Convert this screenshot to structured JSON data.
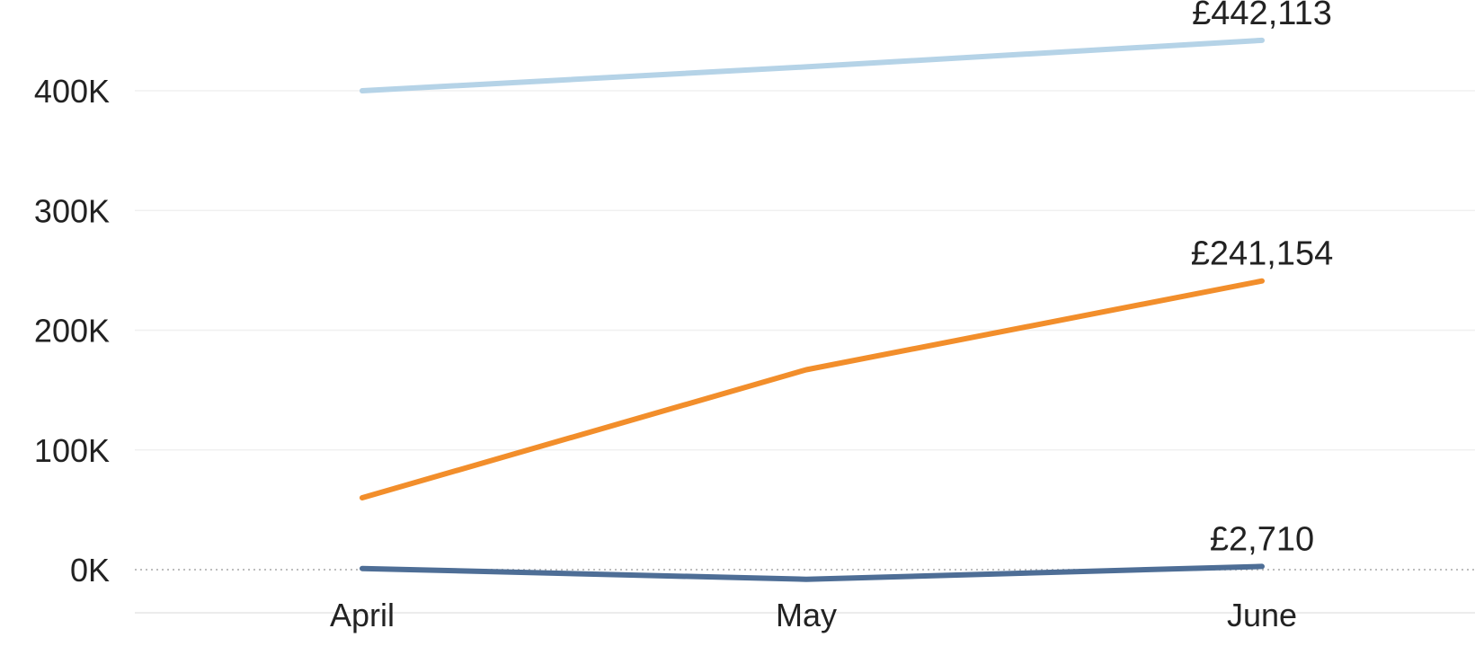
{
  "chart_data": {
    "type": "line",
    "categories": [
      "April",
      "May",
      "June"
    ],
    "series": [
      {
        "values": [
          400000,
          420000,
          442113
        ],
        "color": "#b5d3e7",
        "end_label": "£442,113"
      },
      {
        "values": [
          60000,
          167000,
          241154
        ],
        "color": "#f28e2b",
        "end_label": "£241,154"
      },
      {
        "values": [
          1000,
          -8000,
          2710
        ],
        "color": "#4e6e96",
        "end_label": "£2,710"
      }
    ],
    "y_ticks": [
      "0K",
      "100K",
      "200K",
      "300K",
      "400K"
    ],
    "y_tick_values": [
      0,
      100000,
      200000,
      300000,
      400000
    ],
    "ylim": [
      -35000,
      480000
    ],
    "grid": true,
    "zero_line": "dotted"
  }
}
